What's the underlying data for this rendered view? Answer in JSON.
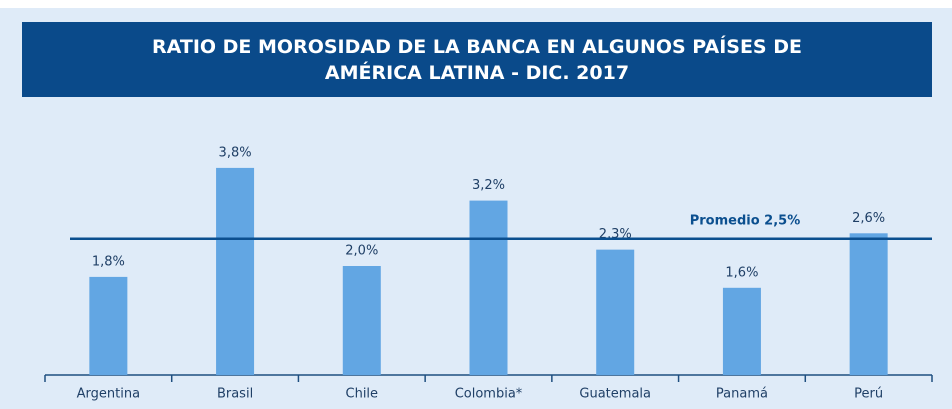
{
  "chart_data": {
    "type": "bar",
    "title": "RATIO DE MOROSIDAD DE LA BANCA EN ALGUNOS PAÍSES DE AMÉRICA LATINA - DIC. 2017",
    "categories": [
      "Argentina",
      "Brasil",
      "Chile",
      "Colombia*",
      "Guatemala",
      "Panamá",
      "Perú"
    ],
    "values": [
      1.8,
      3.8,
      2.0,
      3.2,
      2.3,
      1.6,
      2.6
    ],
    "value_labels": [
      "1,8%",
      "3,8%",
      "2,0%",
      "3,2%",
      "2,3%",
      "1,6%",
      "2,6%"
    ],
    "color": "#62a6e3",
    "ylim": [
      0,
      4
    ],
    "reference_line": {
      "value": 2.5,
      "label": "Promedio 2,5%",
      "color": "#0b4f8f"
    }
  }
}
